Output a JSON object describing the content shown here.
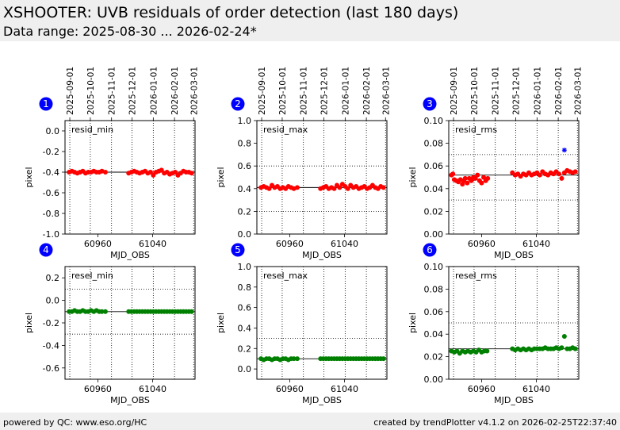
{
  "header": {
    "title": "XSHOOTER: UVB residuals of order detection (last 180 days)",
    "subtitle": "Data range: 2025-08-30 ... 2026-02-24*"
  },
  "footer": {
    "left": "powered by QC: www.eso.org/HC",
    "right": "created by trendPlotter v4.1.2 on 2026-02-25T22:37:40"
  },
  "colors": {
    "red": "#ff0000",
    "green": "#008000",
    "blue": "#0000ff",
    "badge": "#0000ff"
  },
  "date_ticks": {
    "labels": [
      "2025-09-01",
      "2025-10-01",
      "2025-11-01",
      "2025-12-01",
      "2026-01-01",
      "2026-02-01",
      "2026-03-01"
    ],
    "mjd": [
      60919,
      60949,
      60980,
      61010,
      61041,
      61072,
      61100
    ]
  },
  "chart_data": [
    {
      "type": "scatter",
      "panel": "1",
      "label": "resid_min",
      "xlabel": "MJD_OBS",
      "ylabel": "pixel",
      "xlim": [
        60912,
        61102
      ],
      "ylim": [
        -1.0,
        0.1
      ],
      "xticks": [
        60960,
        61040
      ],
      "yticks": [
        -1.0,
        -0.8,
        -0.6,
        -0.4,
        -0.2,
        0.0
      ],
      "ref_line": -0.4,
      "dotted_lines": [
        -0.4
      ],
      "color": "red",
      "x": [
        60918,
        60922,
        60926,
        60930,
        60934,
        60938,
        60942,
        60946,
        60950,
        60954,
        60958,
        60962,
        60966,
        60971,
        61005,
        61009,
        61013,
        61017,
        61021,
        61025,
        61029,
        61033,
        61037,
        61041,
        61045,
        61049,
        61053,
        61057,
        61061,
        61065,
        61069,
        61073,
        61077,
        61081,
        61085,
        61089,
        61093,
        61097
      ],
      "y": [
        -0.4,
        -0.39,
        -0.4,
        -0.41,
        -0.4,
        -0.39,
        -0.41,
        -0.4,
        -0.4,
        -0.39,
        -0.4,
        -0.4,
        -0.39,
        -0.4,
        -0.41,
        -0.4,
        -0.39,
        -0.4,
        -0.41,
        -0.4,
        -0.39,
        -0.41,
        -0.4,
        -0.43,
        -0.4,
        -0.39,
        -0.38,
        -0.41,
        -0.4,
        -0.42,
        -0.41,
        -0.4,
        -0.43,
        -0.41,
        -0.39,
        -0.4,
        -0.4,
        -0.41
      ]
    },
    {
      "type": "scatter",
      "panel": "2",
      "label": "resid_max",
      "xlabel": "MJD_OBS",
      "ylabel": "pixel",
      "xlim": [
        60912,
        61102
      ],
      "ylim": [
        0.0,
        1.0
      ],
      "xticks": [
        60960,
        61040
      ],
      "yticks": [
        0.0,
        0.2,
        0.4,
        0.6,
        0.8,
        1.0
      ],
      "ref_line": 0.41,
      "dotted_lines": [
        0.2,
        0.6
      ],
      "color": "red",
      "x": [
        60918,
        60922,
        60926,
        60930,
        60934,
        60938,
        60942,
        60946,
        60950,
        60954,
        60958,
        60962,
        60966,
        60971,
        61005,
        61009,
        61013,
        61017,
        61021,
        61025,
        61029,
        61033,
        61037,
        61041,
        61045,
        61049,
        61053,
        61057,
        61061,
        61065,
        61069,
        61073,
        61077,
        61081,
        61085,
        61089,
        61093,
        61097
      ],
      "y": [
        0.41,
        0.42,
        0.41,
        0.4,
        0.43,
        0.41,
        0.42,
        0.4,
        0.41,
        0.4,
        0.42,
        0.41,
        0.4,
        0.41,
        0.4,
        0.41,
        0.42,
        0.4,
        0.41,
        0.4,
        0.43,
        0.41,
        0.44,
        0.42,
        0.4,
        0.43,
        0.41,
        0.42,
        0.4,
        0.41,
        0.42,
        0.4,
        0.41,
        0.43,
        0.41,
        0.4,
        0.42,
        0.41
      ]
    },
    {
      "type": "scatter",
      "panel": "3",
      "label": "resid_rms",
      "xlabel": "MJD_OBS",
      "ylabel": "pixel",
      "xlim": [
        60912,
        61102
      ],
      "ylim": [
        0.0,
        0.1
      ],
      "xticks": [
        60960,
        61040
      ],
      "yticks": [
        0.0,
        0.02,
        0.04,
        0.06,
        0.08,
        0.1
      ],
      "ref_line": 0.052,
      "dotted_lines": [
        0.03,
        0.07
      ],
      "color": "red",
      "x": [
        60916,
        60918,
        60920,
        60923,
        60926,
        60929,
        60932,
        60934,
        60936,
        60939,
        60942,
        60945,
        60948,
        60951,
        60954,
        60957,
        60960,
        60963,
        60966,
        60969,
        61005,
        61009,
        61013,
        61017,
        61021,
        61025,
        61029,
        61033,
        61037,
        61041,
        61045,
        61049,
        61053,
        61057,
        61061,
        61065,
        61069,
        61073,
        61077,
        61081,
        61085,
        61089,
        61093,
        61097
      ],
      "y": [
        0.052,
        0.053,
        0.048,
        0.047,
        0.046,
        0.048,
        0.044,
        0.047,
        0.049,
        0.045,
        0.049,
        0.047,
        0.05,
        0.049,
        0.052,
        0.047,
        0.045,
        0.05,
        0.047,
        0.049,
        0.054,
        0.052,
        0.053,
        0.051,
        0.053,
        0.052,
        0.054,
        0.052,
        0.053,
        0.054,
        0.052,
        0.055,
        0.053,
        0.052,
        0.054,
        0.053,
        0.055,
        0.053,
        0.049,
        0.054,
        0.056,
        0.055,
        0.054,
        0.055
      ],
      "outliers": [
        {
          "x": 61081,
          "y": 0.074,
          "color": "blue",
          "marker": "star"
        }
      ]
    },
    {
      "type": "scatter",
      "panel": "4",
      "label": "resel_min",
      "xlabel": "MJD_OBS",
      "ylabel": "pixel",
      "xlim": [
        60912,
        61102
      ],
      "ylim": [
        -0.7,
        0.3
      ],
      "xticks": [
        60960,
        61040
      ],
      "yticks": [
        -0.6,
        -0.4,
        -0.2,
        0.0,
        0.2
      ],
      "ref_line": -0.1,
      "dotted_lines": [
        -0.3,
        0.1
      ],
      "color": "green",
      "x": [
        60918,
        60922,
        60926,
        60930,
        60934,
        60938,
        60942,
        60946,
        60950,
        60954,
        60958,
        60962,
        60966,
        60971,
        61005,
        61009,
        61013,
        61017,
        61021,
        61025,
        61029,
        61033,
        61037,
        61041,
        61045,
        61049,
        61053,
        61057,
        61061,
        61065,
        61069,
        61073,
        61077,
        61081,
        61085,
        61089,
        61093,
        61097
      ],
      "y": [
        -0.1,
        -0.1,
        -0.09,
        -0.1,
        -0.1,
        -0.09,
        -0.1,
        -0.1,
        -0.09,
        -0.1,
        -0.09,
        -0.1,
        -0.1,
        -0.1,
        -0.1,
        -0.1,
        -0.1,
        -0.1,
        -0.1,
        -0.1,
        -0.1,
        -0.1,
        -0.1,
        -0.1,
        -0.1,
        -0.1,
        -0.1,
        -0.1,
        -0.1,
        -0.1,
        -0.1,
        -0.1,
        -0.1,
        -0.1,
        -0.1,
        -0.1,
        -0.1,
        -0.1
      ]
    },
    {
      "type": "scatter",
      "panel": "5",
      "label": "resel_max",
      "xlabel": "MJD_OBS",
      "ylabel": "pixel",
      "xlim": [
        60912,
        61102
      ],
      "ylim": [
        -0.1,
        1.0
      ],
      "xticks": [
        60960,
        61040
      ],
      "yticks": [
        0.0,
        0.2,
        0.4,
        0.6,
        0.8,
        1.0
      ],
      "ref_line": 0.1,
      "dotted_lines": [
        0.3
      ],
      "color": "green",
      "x": [
        60918,
        60922,
        60926,
        60930,
        60934,
        60938,
        60942,
        60946,
        60950,
        60954,
        60958,
        60962,
        60966,
        60971,
        61005,
        61009,
        61013,
        61017,
        61021,
        61025,
        61029,
        61033,
        61037,
        61041,
        61045,
        61049,
        61053,
        61057,
        61061,
        61065,
        61069,
        61073,
        61077,
        61081,
        61085,
        61089,
        61093,
        61097
      ],
      "y": [
        0.1,
        0.09,
        0.1,
        0.1,
        0.09,
        0.1,
        0.1,
        0.09,
        0.1,
        0.1,
        0.09,
        0.1,
        0.1,
        0.1,
        0.1,
        0.1,
        0.1,
        0.1,
        0.1,
        0.1,
        0.1,
        0.1,
        0.1,
        0.1,
        0.1,
        0.1,
        0.1,
        0.1,
        0.1,
        0.1,
        0.1,
        0.1,
        0.1,
        0.1,
        0.1,
        0.1,
        0.1,
        0.1
      ]
    },
    {
      "type": "scatter",
      "panel": "6",
      "label": "resel_rms",
      "xlabel": "MJD_OBS",
      "ylabel": "pixel",
      "xlim": [
        60912,
        61102
      ],
      "ylim": [
        0.0,
        0.1
      ],
      "xticks": [
        60960,
        61040
      ],
      "yticks": [
        0.0,
        0.02,
        0.04,
        0.06,
        0.08,
        0.1
      ],
      "ref_line": 0.027,
      "dotted_lines": [
        0.05
      ],
      "color": "green",
      "x": [
        60916,
        60920,
        60924,
        60928,
        60932,
        60936,
        60940,
        60944,
        60948,
        60952,
        60956,
        60960,
        60964,
        60968,
        61005,
        61009,
        61013,
        61017,
        61021,
        61025,
        61029,
        61033,
        61037,
        61041,
        61045,
        61049,
        61053,
        61057,
        61061,
        61065,
        61069,
        61073,
        61077,
        61081,
        61085,
        61089,
        61093,
        61097
      ],
      "y": [
        0.025,
        0.024,
        0.025,
        0.023,
        0.025,
        0.024,
        0.025,
        0.024,
        0.025,
        0.024,
        0.026,
        0.024,
        0.025,
        0.025,
        0.027,
        0.026,
        0.027,
        0.026,
        0.027,
        0.026,
        0.027,
        0.026,
        0.027,
        0.027,
        0.027,
        0.027,
        0.028,
        0.027,
        0.027,
        0.027,
        0.028,
        0.027,
        0.028,
        0.038,
        0.027,
        0.027,
        0.028,
        0.027
      ]
    }
  ]
}
